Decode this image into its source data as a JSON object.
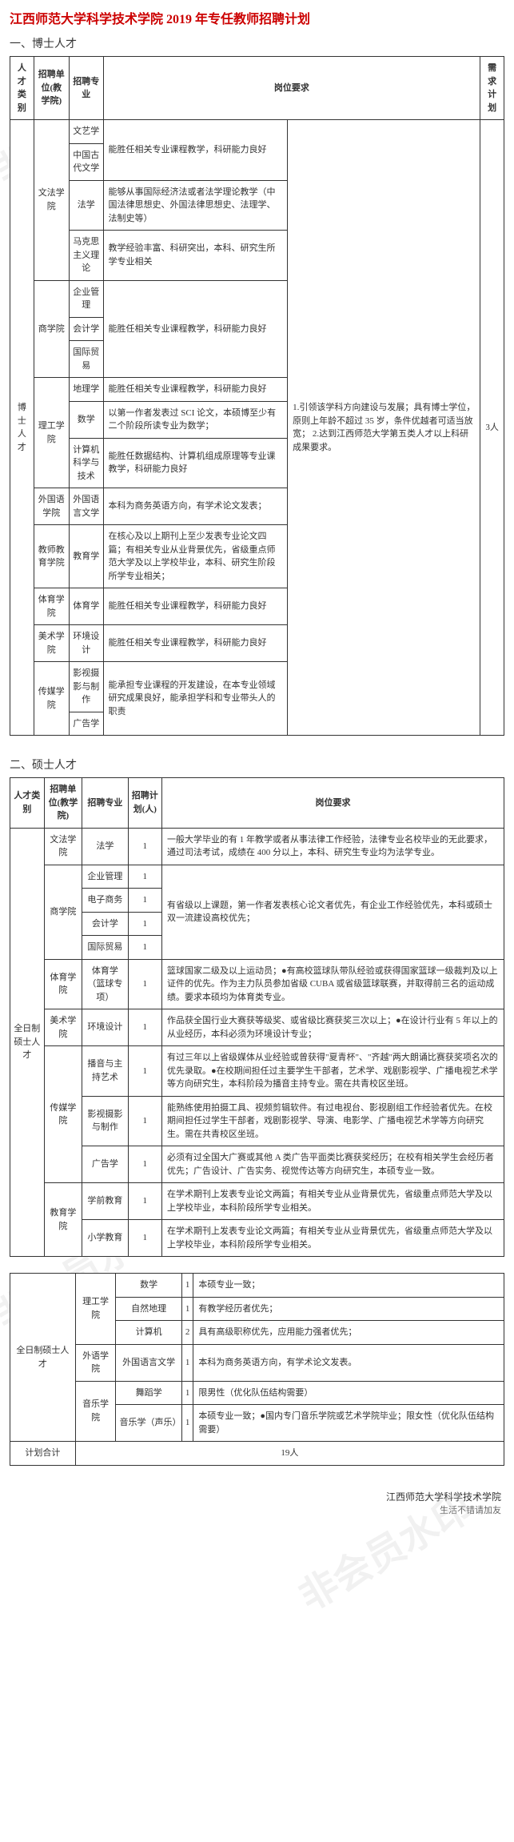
{
  "doc_title": "江西师范大学科学技术学院 2019 年专任教师招聘计划",
  "section1_heading": "一、博士人才",
  "section2_heading": "二、硕士人才",
  "watermarks": [
    "非会员水印",
    "非会员水印",
    "非会员水印",
    "非会员水印"
  ],
  "t1": {
    "headers": [
      "人才类别",
      "招聘单位(教学院)",
      "招聘专业",
      "岗位要求",
      "",
      "需求计划"
    ],
    "category": "博士人才",
    "common_req": "1.引领该学科方向建设与发展；具有博士学位，原则上年龄不超过 35 岁，条件优越者可适当放宽；\n2.达到江西师范大学第五类人才以上科研成果要求。",
    "plan": "3人",
    "rows": [
      {
        "dept": "文法学院",
        "majors": [
          {
            "m": "文艺学",
            "r": "能胜任相关专业课程教学，科研能力良好",
            "rspan": 2
          },
          {
            "m": "中国古代文学"
          },
          {
            "m": "法学",
            "r": "能够从事国际经济法或者法学理论教学（中国法律思想史、外国法律思想史、法理学、法制史等）"
          },
          {
            "m": "马克思主义理论",
            "r": "教学经验丰富、科研突出，本科、研究生所学专业相关"
          }
        ]
      },
      {
        "dept": "商学院",
        "majors": [
          {
            "m": "企业管理",
            "r": "能胜任相关专业课程教学，科研能力良好",
            "rspan": 3
          },
          {
            "m": "会计学"
          },
          {
            "m": "国际贸易"
          }
        ]
      },
      {
        "dept": "理工学院",
        "majors": [
          {
            "m": "地理学",
            "r": "能胜任相关专业课程教学，科研能力良好"
          },
          {
            "m": "数学",
            "r": "以第一作者发表过 SCI 论文，本硕博至少有二个阶段所读专业为数学；"
          },
          {
            "m": "计算机科学与技术",
            "r": "能胜任数据结构、计算机组成原理等专业课教学，科研能力良好"
          }
        ]
      },
      {
        "dept": "外国语学院",
        "majors": [
          {
            "m": "外国语言文学",
            "r": "本科为商务英语方向，有学术论文发表；"
          }
        ]
      },
      {
        "dept": "教师教育学院",
        "majors": [
          {
            "m": "教育学",
            "r": "在核心及以上期刊上至少发表专业论文四篇；有相关专业从业背景优先，省级重点师范大学及以上学校毕业，本科、研究生阶段所学专业相关；"
          }
        ]
      },
      {
        "dept": "体育学院",
        "majors": [
          {
            "m": "体育学",
            "r": "能胜任相关专业课程教学，科研能力良好"
          }
        ]
      },
      {
        "dept": "美术学院",
        "majors": [
          {
            "m": "环境设计",
            "r": "能胜任相关专业课程教学，科研能力良好"
          }
        ]
      },
      {
        "dept": "传媒学院",
        "majors": [
          {
            "m": "影视摄影与制作",
            "r": "能承担专业课程的开发建设，在本专业领域研究成果良好，能承担学科和专业带头人的职责",
            "rspan": 2
          },
          {
            "m": "广告学"
          }
        ]
      }
    ]
  },
  "t2": {
    "headers": [
      "人才类别",
      "招聘单位(教学院)",
      "招聘专业",
      "招聘计划(人)",
      "岗位要求"
    ],
    "category": "全日制硕士人才",
    "rows": [
      {
        "dept": "文法学院",
        "m": "法学",
        "n": "1",
        "r": "一般大学毕业的有 1 年教学或者从事法律工作经验，法律专业名校毕业的无此要求，通过司法考试，成绩在 400 分以上，本科、研究生专业均为法学专业。"
      },
      {
        "dept": "商学院",
        "dspan": 4,
        "m": "企业管理",
        "n": "1",
        "r": "有省级以上课题，第一作者发表核心论文者优先，有企业工作经验优先，本科或硕士双一流建设高校优先；",
        "rspan": 4
      },
      {
        "m": "电子商务",
        "n": "1"
      },
      {
        "m": "会计学",
        "n": "1"
      },
      {
        "m": "国际贸易",
        "n": "1"
      },
      {
        "dept": "体育学院",
        "m": "体育学（篮球专项）",
        "n": "1",
        "r": "篮球国家二级及以上运动员；●有高校篮球队带队经验或获得国家篮球一级裁判及以上证件的优先。作为主力队员参加省级 CUBA 或省级篮球联赛，并取得前三名的运动成绩。要求本硕均为体育类专业。"
      },
      {
        "dept": "美术学院",
        "m": "环境设计",
        "n": "1",
        "r": "作品获全国行业大赛获等级奖、或省级比赛获奖三次以上；●在设计行业有 5 年以上的从业经历，本科必须为环境设计专业；"
      },
      {
        "dept": "传媒学院",
        "dspan": 3,
        "m": "播音与主持艺术",
        "n": "1",
        "r": "有过三年以上省级媒体从业经验或曾获得\"夏青杯\"、\"齐越\"两大朗诵比赛获奖项名次的优先录取。●在校期间担任过主要学生干部者，艺术学、戏剧影视学、广播电视艺术学等方向研究生，本科阶段为播音主持专业。需在共青校区坐班。"
      },
      {
        "m": "影视摄影与制作",
        "n": "1",
        "r": "能熟练使用拍摄工具、视频剪辑软件。有过电视台、影视剧组工作经验者优先。在校期间担任过学生干部者，戏剧影视学、导演、电影学、广播电视艺术学等方向研究生。需在共青校区坐班。"
      },
      {
        "m": "广告学",
        "n": "1",
        "r": "必须有过全国大广赛或其他 A 类广告平面类比赛获奖经历；在校有相关学生会经历者优先；广告设计、广告实务、视觉传达等方向研究生，本硕专业一致。"
      },
      {
        "dept": "教育学院",
        "dspan": 2,
        "m": "学前教育",
        "n": "1",
        "r": "在学术期刊上发表专业论文两篇；有相关专业从业背景优先，省级重点师范大学及以上学校毕业，本科阶段所学专业相关。"
      },
      {
        "m": "小学教育",
        "n": "1",
        "r": "在学术期刊上发表专业论文两篇；有相关专业从业背景优先，省级重点师范大学及以上学校毕业，本科阶段所学专业相关。"
      }
    ]
  },
  "t3": {
    "category": "全日制硕士人才",
    "rows": [
      {
        "dept": "理工学院",
        "dspan": 3,
        "m": "数学",
        "n": "1",
        "r": "本硕专业一致；"
      },
      {
        "m": "自然地理",
        "n": "1",
        "r": "有教学经历者优先；"
      },
      {
        "m": "计算机",
        "n": "2",
        "r": "具有高级职称优先，应用能力强者优先；"
      },
      {
        "dept": "外语学院",
        "m": "外国语言文学",
        "n": "1",
        "r": "本科为商务英语方向，有学术论文发表。"
      },
      {
        "dept": "音乐学院",
        "dspan": 2,
        "m": "舞蹈学",
        "n": "1",
        "r": "限男性（优化队伍结构需要）"
      },
      {
        "m": "音乐学（声乐）",
        "n": "1",
        "r": "本硕专业一致；●国内专门音乐学院或艺术学院毕业；限女性（优化队伍结构需要）"
      }
    ],
    "total_label": "计划合计",
    "total_value": "19人"
  },
  "footer_main": "江西师范大学科学技术学院",
  "footer_sub": "生活不错请加友"
}
